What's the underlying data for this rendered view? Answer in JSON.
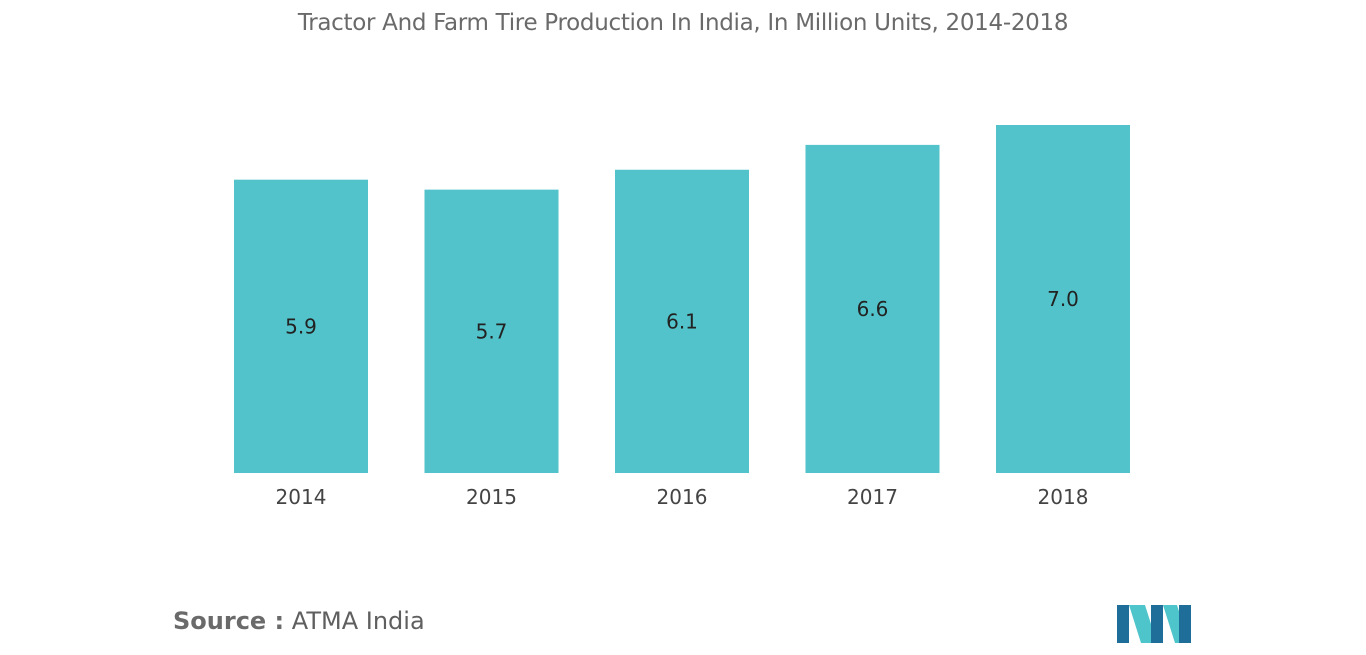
{
  "colors": {
    "bar": "#52c3ca",
    "logo_dark": "#1f6e99",
    "logo_light": "#4ec4cb"
  },
  "chart_data": {
    "type": "bar",
    "title": "Tractor And Farm Tire Production In India, In Million Units, 2014-2018",
    "categories": [
      "2014",
      "2015",
      "2016",
      "2017",
      "2018"
    ],
    "values": [
      5.9,
      5.7,
      6.1,
      6.6,
      7.0
    ],
    "value_labels": [
      "5.9",
      "5.7",
      "6.1",
      "6.6",
      "7.0"
    ],
    "xlabel": "",
    "ylabel": "",
    "ylim": [
      0,
      7.0
    ],
    "grid": false,
    "legend": "none"
  },
  "source": {
    "prefix": "Source :",
    "text": "ATMA India"
  },
  "logo": {
    "icon": "mordor-intelligence-logo-icon"
  }
}
